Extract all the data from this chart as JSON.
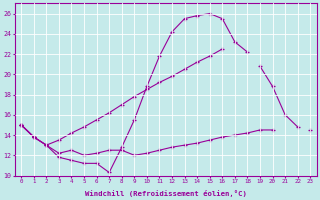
{
  "xlabel": "Windchill (Refroidissement éolien,°C)",
  "background_color": "#c5eaea",
  "line_color": "#990099",
  "grid_color": "#ffffff",
  "xlim": [
    -0.5,
    23.5
  ],
  "ylim": [
    10,
    27
  ],
  "xticks": [
    0,
    1,
    2,
    3,
    4,
    5,
    6,
    7,
    8,
    9,
    10,
    11,
    12,
    13,
    14,
    15,
    16,
    17,
    18,
    19,
    20,
    21,
    22,
    23
  ],
  "yticks": [
    10,
    12,
    14,
    16,
    18,
    20,
    22,
    24,
    26
  ],
  "line1_y": [
    15.0,
    13.8,
    13.0,
    11.8,
    11.5,
    11.2,
    11.2,
    10.3,
    12.8,
    15.5,
    18.8,
    21.8,
    24.2,
    25.5,
    25.8,
    26.0,
    25.5,
    23.2,
    22.2,
    null,
    null,
    null,
    null,
    null
  ],
  "line2_y": [
    15.0,
    13.8,
    null,
    null,
    null,
    null,
    null,
    null,
    null,
    null,
    null,
    null,
    null,
    null,
    null,
    null,
    null,
    null,
    null,
    20.8,
    18.8,
    16.0,
    14.8,
    null
  ],
  "line3_y": [
    15.0,
    13.8,
    13.0,
    13.5,
    14.2,
    14.8,
    15.5,
    16.2,
    17.0,
    17.8,
    18.5,
    19.2,
    19.8,
    20.5,
    21.2,
    21.8,
    22.5,
    null,
    null,
    null,
    null,
    null,
    null,
    null
  ],
  "line4_y": [
    15.0,
    13.8,
    13.0,
    12.2,
    12.5,
    12.0,
    12.2,
    12.5,
    12.5,
    12.0,
    12.2,
    12.5,
    12.8,
    13.0,
    13.2,
    13.5,
    13.8,
    14.0,
    14.2,
    14.5,
    14.5,
    null,
    null,
    14.5
  ]
}
